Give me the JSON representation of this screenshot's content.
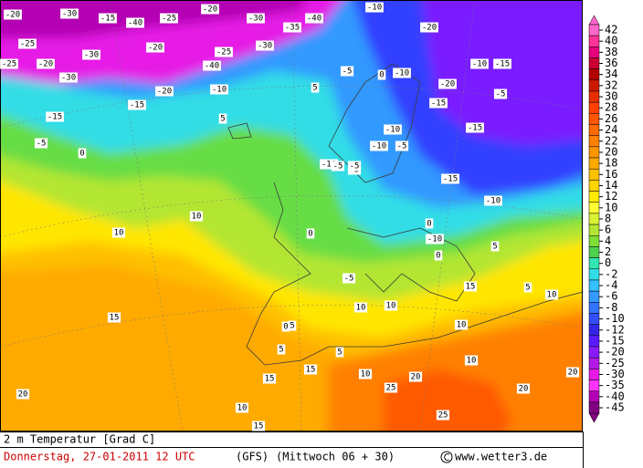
{
  "map": {
    "labels": [
      -20,
      -30,
      -15,
      -40,
      -25,
      -20,
      -30,
      -35,
      -40,
      -25,
      -20,
      -30,
      -20,
      -25,
      -30,
      -40,
      -25,
      -30,
      -20,
      -15,
      -10,
      -10,
      -5,
      -10,
      -20,
      -15,
      -10,
      -5,
      -10,
      -15,
      -20,
      -15,
      -10,
      -5,
      -10,
      -5,
      -15,
      -10,
      -5,
      -5,
      0,
      0,
      5,
      5,
      0,
      0,
      5,
      10,
      10,
      10,
      5,
      10,
      10,
      15,
      15,
      15,
      10,
      20,
      20,
      25,
      25,
      20,
      15,
      10,
      5,
      0,
      -5,
      5,
      10,
      15,
      20,
      10,
      5,
      0,
      -5,
      -10,
      -15
    ]
  },
  "legend": {
    "levels": [
      42,
      40,
      38,
      36,
      34,
      32,
      30,
      28,
      26,
      24,
      22,
      20,
      18,
      16,
      14,
      12,
      10,
      8,
      6,
      4,
      2,
      0,
      -2,
      -4,
      -6,
      -8,
      -10,
      -12,
      -15,
      -20,
      -25,
      -30,
      -35,
      -40,
      -45
    ],
    "colors": [
      "#ff66cc",
      "#ff3399",
      "#e6007a",
      "#cc0033",
      "#b30000",
      "#cc1a00",
      "#e62e00",
      "#ff4000",
      "#ff5500",
      "#ff6a00",
      "#ff8000",
      "#ff9500",
      "#ffaa00",
      "#ffc000",
      "#ffd500",
      "#ffea00",
      "#ffff33",
      "#d9f233",
      "#b3e633",
      "#80dd33",
      "#4dd24d",
      "#33e6b3",
      "#33dde6",
      "#33c0ff",
      "#3399ff",
      "#3373ff",
      "#334dff",
      "#3326e6",
      "#5a1aff",
      "#8a1aff",
      "#b31ae6",
      "#e61ae6",
      "#ff33ff",
      "#b300b3",
      "#800080"
    ]
  },
  "footer": {
    "field": "2 m Temperatur [Grad C]",
    "date": "Donnerstag, 27-01-2011  12 UTC",
    "model": "(GFS)",
    "run": "(Mittwoch 06 + 30)",
    "credit": "www.wetter3.de"
  }
}
